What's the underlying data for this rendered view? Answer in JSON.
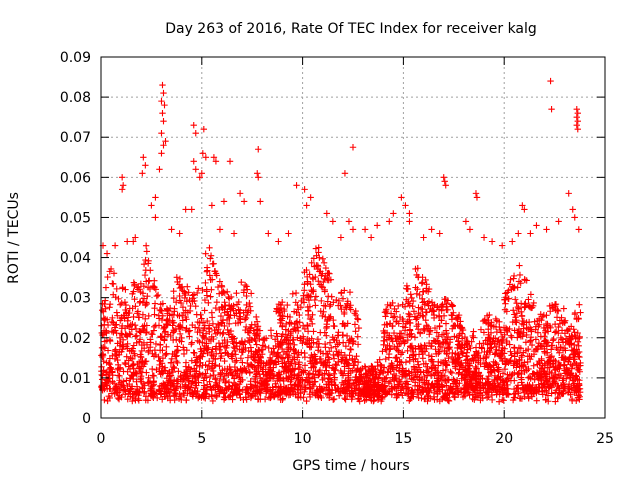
{
  "chart_data": {
    "type": "scatter",
    "title": "Day 263 of 2016, Rate Of TEC Index for receiver kalg",
    "xlabel": "GPS time / hours",
    "ylabel": "ROTI / TECUs",
    "xlim": [
      0,
      25
    ],
    "ylim": [
      0,
      0.09
    ],
    "xticks": [
      0,
      5,
      10,
      15,
      20,
      25
    ],
    "xtick_labels": [
      "0",
      "5",
      "10",
      "15",
      "20",
      "25"
    ],
    "yticks": [
      0,
      0.01,
      0.02,
      0.03,
      0.04,
      0.05,
      0.06,
      0.07,
      0.08,
      0.09
    ],
    "ytick_labels": [
      "0",
      "0.01",
      "0.02",
      "0.03",
      "0.04",
      "0.05",
      "0.06",
      "0.07",
      "0.08",
      "0.09"
    ],
    "grid": true,
    "marker": "+",
    "color": "#ff0000",
    "x_data_range": [
      0,
      23.8
    ],
    "series": [
      {
        "name": "ROTI",
        "points": [
          [
            3.05,
            0.083
          ],
          [
            3.1,
            0.081
          ],
          [
            3.0,
            0.079
          ],
          [
            3.15,
            0.078
          ],
          [
            3.05,
            0.076
          ],
          [
            3.1,
            0.074
          ],
          [
            3.0,
            0.071
          ],
          [
            3.2,
            0.069
          ],
          [
            3.1,
            0.068
          ],
          [
            3.0,
            0.066
          ],
          [
            2.1,
            0.065
          ],
          [
            2.2,
            0.063
          ],
          [
            2.05,
            0.061
          ],
          [
            2.9,
            0.062
          ],
          [
            2.7,
            0.055
          ],
          [
            4.6,
            0.073
          ],
          [
            4.7,
            0.071
          ],
          [
            5.1,
            0.072
          ],
          [
            4.6,
            0.064
          ],
          [
            4.7,
            0.062
          ],
          [
            5.05,
            0.066
          ],
          [
            5.2,
            0.065
          ],
          [
            5.6,
            0.065
          ],
          [
            5.7,
            0.064
          ],
          [
            4.9,
            0.06
          ],
          [
            5.0,
            0.061
          ],
          [
            6.4,
            0.064
          ],
          [
            7.8,
            0.067
          ],
          [
            7.75,
            0.061
          ],
          [
            7.8,
            0.06
          ],
          [
            1.05,
            0.06
          ],
          [
            1.1,
            0.058
          ],
          [
            1.05,
            0.057
          ],
          [
            1.7,
            0.045
          ],
          [
            2.5,
            0.053
          ],
          [
            2.7,
            0.05
          ],
          [
            4.2,
            0.052
          ],
          [
            4.5,
            0.052
          ],
          [
            5.5,
            0.053
          ],
          [
            6.1,
            0.054
          ],
          [
            6.9,
            0.056
          ],
          [
            7.1,
            0.054
          ],
          [
            7.9,
            0.054
          ],
          [
            9.7,
            0.058
          ],
          [
            10.1,
            0.057
          ],
          [
            10.4,
            0.055
          ],
          [
            10.2,
            0.053
          ],
          [
            11.2,
            0.051
          ],
          [
            11.5,
            0.049
          ],
          [
            12.1,
            0.061
          ],
          [
            12.3,
            0.049
          ],
          [
            12.5,
            0.047
          ],
          [
            12.5,
            0.0675
          ],
          [
            13.1,
            0.047
          ],
          [
            13.7,
            0.048
          ],
          [
            14.3,
            0.049
          ],
          [
            14.5,
            0.051
          ],
          [
            14.9,
            0.055
          ],
          [
            15.1,
            0.053
          ],
          [
            15.3,
            0.051
          ],
          [
            15.3,
            0.049
          ],
          [
            16.4,
            0.047
          ],
          [
            17.0,
            0.06
          ],
          [
            17.05,
            0.059
          ],
          [
            17.1,
            0.058
          ],
          [
            18.1,
            0.049
          ],
          [
            18.3,
            0.047
          ],
          [
            18.6,
            0.056
          ],
          [
            18.65,
            0.055
          ],
          [
            19.4,
            0.044
          ],
          [
            19.9,
            0.043
          ],
          [
            20.7,
            0.046
          ],
          [
            20.9,
            0.053
          ],
          [
            21.0,
            0.052
          ],
          [
            21.6,
            0.048
          ],
          [
            22.1,
            0.047
          ],
          [
            22.3,
            0.084
          ],
          [
            22.35,
            0.077
          ],
          [
            22.7,
            0.049
          ],
          [
            23.2,
            0.056
          ],
          [
            23.4,
            0.052
          ],
          [
            23.6,
            0.077
          ],
          [
            23.65,
            0.076
          ],
          [
            23.6,
            0.075
          ],
          [
            23.65,
            0.074
          ],
          [
            23.6,
            0.073
          ],
          [
            23.65,
            0.072
          ],
          [
            23.5,
            0.05
          ],
          [
            23.7,
            0.047
          ],
          [
            0.1,
            0.043
          ],
          [
            0.3,
            0.041
          ],
          [
            0.7,
            0.043
          ],
          [
            1.3,
            0.044
          ],
          [
            1.6,
            0.044
          ],
          [
            3.5,
            0.047
          ],
          [
            3.9,
            0.046
          ],
          [
            5.9,
            0.047
          ],
          [
            6.6,
            0.046
          ],
          [
            8.3,
            0.046
          ],
          [
            8.8,
            0.044
          ],
          [
            9.3,
            0.046
          ],
          [
            11.9,
            0.045
          ],
          [
            13.4,
            0.045
          ],
          [
            16.0,
            0.045
          ],
          [
            16.8,
            0.046
          ],
          [
            19.0,
            0.045
          ],
          [
            20.4,
            0.044
          ],
          [
            21.3,
            0.046
          ]
        ]
      }
    ]
  }
}
